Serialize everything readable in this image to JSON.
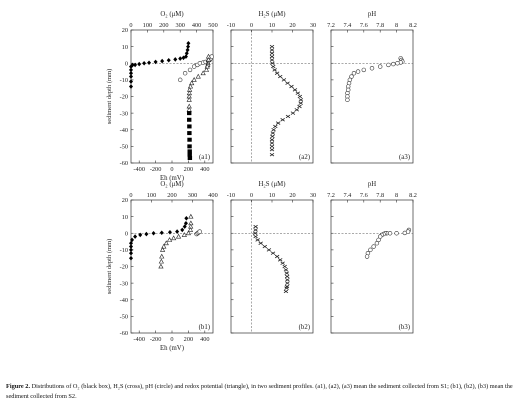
{
  "figure": {
    "caption_label": "Figure 2.",
    "caption_text": "Distributions of O₂ (black box), H₂S (cross), pH (circle) and redox potential (triangle), in two sediment profiles. (a1), (a2), (a3) mean the sediment collected from S1; (b1), (b2), (b3) mean the sediment collected from S2."
  },
  "chart_data": [
    {
      "id": "a1",
      "type": "scatter",
      "panel_label": "(a1)",
      "row": 0,
      "col": 0,
      "ylabel": "sediment depth (mm)",
      "ylim": [
        -60,
        20
      ],
      "yticks": [
        20,
        10,
        0,
        -10,
        -20,
        -30,
        -40,
        -50,
        -60
      ],
      "top_axis": {
        "label": "O₂ (μM)",
        "lim": [
          0,
          500
        ],
        "ticks": [
          0,
          100,
          200,
          300,
          400,
          500
        ]
      },
      "bottom_axis": {
        "label": "Eh (mV)",
        "lim": [
          -500,
          500
        ],
        "ticks": [
          -400,
          -200,
          0,
          200,
          400
        ],
        "tick_labels": [
          "-400",
          "-200",
          "0",
          "200",
          "400"
        ]
      },
      "series": [
        {
          "axis": "top",
          "marker": "diamond",
          "x": [
            0,
            0,
            0,
            0,
            0,
            0,
            10,
            25,
            50,
            80,
            110,
            150,
            190,
            230,
            270,
            300,
            320,
            335,
            340,
            345,
            348,
            350
          ],
          "y": [
            -14,
            -11,
            -8,
            -6,
            -4,
            -2,
            -1,
            -1,
            -0.5,
            0,
            0.3,
            0.8,
            1.3,
            1.8,
            2.3,
            2.8,
            3.3,
            4,
            6,
            8,
            10,
            12
          ]
        },
        {
          "axis": "top",
          "marker": "circle",
          "x": [
            300,
            330,
            360,
            385,
            405,
            420,
            440,
            455,
            470,
            480,
            488,
            492
          ],
          "y": [
            -10,
            -6,
            -4,
            -2,
            -1,
            0,
            0.4,
            0.8,
            1.2,
            2,
            3,
            4
          ]
        },
        {
          "axis": "bottom",
          "marker": "triangle",
          "x": [
            445,
            445,
            440,
            436,
            430,
            420,
            380,
            320,
            270,
            240,
            225,
            215,
            212,
            210,
            210,
            210,
            210
          ],
          "y": [
            4,
            2,
            0,
            -1,
            -2,
            -4,
            -6,
            -8,
            -10,
            -12,
            -14,
            -16,
            -18,
            -20,
            -22,
            -26,
            -28
          ]
        },
        {
          "axis": "bottom",
          "marker": "box",
          "x": [
            210,
            210,
            212,
            212,
            214,
            214,
            216,
            216,
            218
          ],
          "y": [
            -30,
            -34,
            -38,
            -42,
            -46,
            -50,
            -53,
            -55,
            -57
          ]
        }
      ]
    },
    {
      "id": "a2",
      "type": "line",
      "panel_label": "(a2)",
      "row": 0,
      "col": 1,
      "ylim": [
        -60,
        20
      ],
      "top_axis": {
        "label": "H₂S (μM)",
        "lim": [
          -10,
          30
        ],
        "ticks": [
          -10,
          0,
          10,
          20,
          30
        ]
      },
      "series": [
        {
          "axis": "top",
          "marker": "cross",
          "x": [
            10,
            10,
            10,
            10,
            10,
            10.2,
            10.6,
            11.3,
            12.5,
            14,
            15.8,
            17.6,
            19.5,
            21.2,
            22.6,
            23.6,
            24.1,
            24,
            23.4,
            22.1,
            20.2,
            17.8,
            15.2,
            13,
            11.6,
            10.8,
            10.4,
            10.2,
            10,
            10,
            10,
            10,
            10
          ],
          "y": [
            10,
            8,
            6,
            4,
            2,
            0,
            -2,
            -4,
            -6,
            -8,
            -10,
            -12,
            -14,
            -16,
            -18,
            -20,
            -22,
            -24,
            -26,
            -28,
            -30,
            -32,
            -34,
            -36,
            -38,
            -40,
            -42,
            -44,
            -46,
            -48,
            -50,
            -52,
            -55
          ]
        }
      ]
    },
    {
      "id": "a3",
      "type": "scatter",
      "panel_label": "(a3)",
      "row": 0,
      "col": 2,
      "ylim": [
        -60,
        20
      ],
      "top_axis": {
        "label": "pH",
        "lim": [
          7.2,
          8.2
        ],
        "ticks": [
          7.2,
          7.4,
          7.6,
          7.8,
          8.0,
          8.2
        ],
        "tick_labels": [
          "7.2",
          "7.4",
          "7.6",
          "7.8",
          "8",
          "8.2"
        ]
      },
      "series": [
        {
          "axis": "top",
          "marker": "circle",
          "x": [
            8.05,
            8.06,
            8.07,
            8.05,
            8.01,
            7.96,
            7.9,
            7.8,
            7.7,
            7.6,
            7.53,
            7.48,
            7.45,
            7.43,
            7.42,
            7.41,
            7.41,
            7.4,
            7.4,
            7.4
          ],
          "y": [
            3,
            2,
            1,
            0.5,
            0,
            -0.5,
            -1,
            -2,
            -3,
            -4,
            -5,
            -6,
            -8,
            -10,
            -12,
            -14,
            -16,
            -18,
            -20,
            -22
          ]
        }
      ]
    },
    {
      "id": "b1",
      "type": "scatter",
      "panel_label": "(b1)",
      "row": 1,
      "col": 0,
      "ylabel": "sediment depth (mm)",
      "ylim": [
        -60,
        20
      ],
      "yticks": [
        20,
        10,
        0,
        -10,
        -20,
        -30,
        -40,
        -50,
        -60
      ],
      "top_axis": {
        "label": "O₂ (μM)",
        "lim": [
          0,
          400
        ],
        "ticks": [
          0,
          100,
          200,
          300,
          400
        ]
      },
      "bottom_axis": {
        "label": "Eh (mV)",
        "lim": [
          -500,
          500
        ],
        "ticks": [
          -400,
          -200,
          0,
          200,
          400
        ],
        "tick_labels": [
          "-400",
          "-200",
          "0",
          "200",
          "400"
        ]
      },
      "series": [
        {
          "axis": "top",
          "marker": "diamond",
          "x": [
            0,
            0,
            0,
            0,
            0,
            5,
            20,
            45,
            75,
            110,
            150,
            190,
            225,
            250,
            262,
            268,
            270
          ],
          "y": [
            -15,
            -12,
            -10,
            -8,
            -6,
            -4,
            -2,
            -1,
            -0.5,
            0,
            0.3,
            0.6,
            1,
            2,
            4,
            6,
            9
          ]
        },
        {
          "axis": "top",
          "marker": "circle",
          "x": [
            320,
            325,
            330,
            335
          ],
          "y": [
            -0.5,
            0,
            0.5,
            1
          ]
        },
        {
          "axis": "bottom",
          "marker": "triangle",
          "x": [
            230,
            230,
            228,
            225,
            200,
            150,
            80,
            20,
            -30,
            -70,
            -100,
            -115,
            -125,
            -130,
            -135
          ],
          "y": [
            10,
            6,
            4,
            2,
            0,
            -1,
            -2,
            -3,
            -4,
            -6,
            -8,
            -10,
            -14,
            -17,
            -20
          ]
        }
      ]
    },
    {
      "id": "b2",
      "type": "line",
      "panel_label": "(b2)",
      "row": 1,
      "col": 1,
      "ylim": [
        -60,
        20
      ],
      "top_axis": {
        "label": "H₂S (μM)",
        "lim": [
          -10,
          30
        ],
        "ticks": [
          -10,
          0,
          10,
          20,
          30
        ]
      },
      "series": [
        {
          "axis": "top",
          "marker": "cross",
          "x": [
            2,
            2,
            1.8,
            2,
            3,
            4.5,
            6.5,
            8.5,
            10.5,
            12.5,
            14,
            15.2,
            16.2,
            16.8,
            17.2,
            17.4,
            17.5,
            17.5,
            17.3,
            17.1,
            16.8
          ],
          "y": [
            4,
            2,
            0,
            -2,
            -4,
            -6,
            -8,
            -10,
            -12,
            -14,
            -16,
            -18,
            -20,
            -22,
            -24,
            -26,
            -28,
            -30,
            -32,
            -33,
            -35
          ]
        }
      ]
    },
    {
      "id": "b3",
      "type": "scatter",
      "panel_label": "(b3)",
      "row": 1,
      "col": 2,
      "ylim": [
        -60,
        20
      ],
      "top_axis": {
        "label": "pH",
        "lim": [
          7.2,
          8.2
        ],
        "ticks": [
          7.2,
          7.4,
          7.6,
          7.8,
          8.0,
          8.2
        ],
        "tick_labels": [
          "7.2",
          "7.4",
          "7.6",
          "7.8",
          "8",
          "8.2"
        ]
      },
      "series": [
        {
          "axis": "top",
          "marker": "circle",
          "x": [
            8.15,
            8.14,
            8.1,
            8.0,
            7.92,
            7.88,
            7.86,
            7.84,
            7.82,
            7.8,
            7.78,
            7.76,
            7.72,
            7.68,
            7.65,
            7.64
          ],
          "y": [
            2,
            1,
            0.2,
            0,
            0,
            0,
            0,
            -0.5,
            -1,
            -2,
            -4,
            -6,
            -8,
            -10,
            -12,
            -14
          ]
        }
      ]
    }
  ]
}
